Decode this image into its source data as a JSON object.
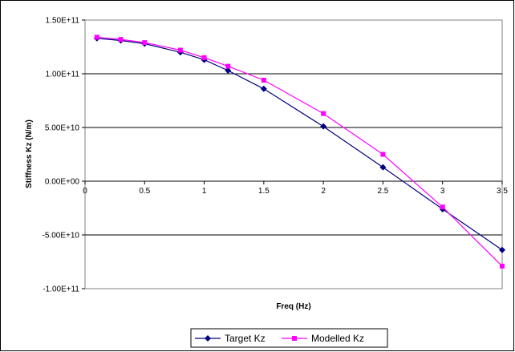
{
  "chart_data": {
    "type": "line",
    "title": "",
    "xlabel": "Freq (Hz)",
    "ylabel": "Stiffness Kz (N/m)",
    "xlim": [
      0,
      3.5
    ],
    "ylim": [
      -100000000000,
      150000000000
    ],
    "x_ticks": [
      0,
      0.5,
      1,
      1.5,
      2,
      2.5,
      3,
      3.5
    ],
    "x_tick_labels": [
      "0",
      "0.5",
      "1",
      "1.5",
      "2",
      "2.5",
      "3",
      "3.5"
    ],
    "y_ticks": [
      150000000000,
      100000000000,
      50000000000,
      0,
      -50000000000,
      -100000000000
    ],
    "y_tick_labels": [
      "1.50E+11",
      "1.00E+11",
      "5.00E+10",
      "0.00E+00",
      "-5.00E+10",
      "-1.00E+11"
    ],
    "grid": "horizontal",
    "legend_position": "bottom",
    "series": [
      {
        "name": "Target Kz",
        "color": "#000080",
        "marker": "diamond",
        "x": [
          0.1,
          0.3,
          0.5,
          0.8,
          1.0,
          1.2,
          1.5,
          2.0,
          2.5,
          3.0,
          3.5
        ],
        "values": [
          133000000000,
          131000000000,
          128000000000,
          120000000000,
          113000000000,
          103000000000,
          86000000000,
          51000000000,
          13000000000,
          -26000000000,
          -64000000000
        ]
      },
      {
        "name": "Modelled Kz",
        "color": "#ff00ff",
        "marker": "square",
        "x": [
          0.1,
          0.3,
          0.5,
          0.8,
          1.0,
          1.2,
          1.5,
          2.0,
          2.5,
          3.0,
          3.5
        ],
        "values": [
          134000000000,
          132000000000,
          129000000000,
          122000000000,
          115000000000,
          107000000000,
          94000000000,
          63000000000,
          25000000000,
          -24000000000,
          -79000000000
        ]
      }
    ]
  }
}
